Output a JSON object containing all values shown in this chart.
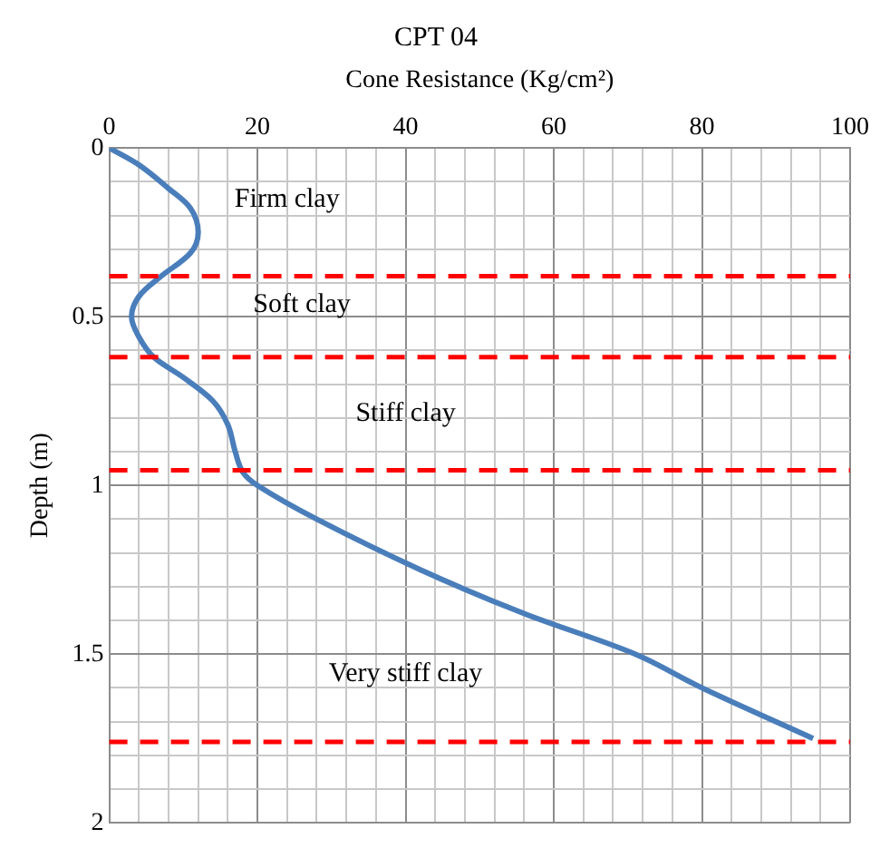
{
  "chart_data": {
    "type": "line",
    "title": "CPT 04",
    "xlabel": "Cone Resistance (Kg/cm²)",
    "ylabel": "Depth (m)",
    "xlim": [
      0,
      100
    ],
    "ylim": [
      2,
      0
    ],
    "xticks": [
      0,
      {
        "value": 4,
        "label": null
      },
      {
        "value": 8,
        "label": null
      },
      {
        "value": 12,
        "label": null
      },
      {
        "value": 16,
        "label": null
      },
      20,
      {
        "value": 24,
        "label": null
      },
      {
        "value": 28,
        "label": null
      },
      {
        "value": 32,
        "label": null
      },
      {
        "value": 36,
        "label": null
      },
      40,
      {
        "value": 44,
        "label": null
      },
      {
        "value": 48,
        "label": null
      },
      {
        "value": 52,
        "label": null
      },
      {
        "value": 56,
        "label": null
      },
      60,
      {
        "value": 64,
        "label": null
      },
      {
        "value": 68,
        "label": null
      },
      {
        "value": 72,
        "label": null
      },
      {
        "value": 76,
        "label": null
      },
      80,
      {
        "value": 84,
        "label": null
      },
      {
        "value": 88,
        "label": null
      },
      {
        "value": 92,
        "label": null
      },
      {
        "value": 96,
        "label": null
      },
      100
    ],
    "yticks": [
      0,
      {
        "value": 0.1,
        "label": null
      },
      {
        "value": 0.2,
        "label": null
      },
      {
        "value": 0.3,
        "label": null
      },
      {
        "value": 0.4,
        "label": null
      },
      0.5,
      {
        "value": 0.6,
        "label": null
      },
      {
        "value": 0.7,
        "label": null
      },
      {
        "value": 0.8,
        "label": null
      },
      {
        "value": 0.9,
        "label": null
      },
      1,
      {
        "value": 1.1,
        "label": null
      },
      {
        "value": 1.2,
        "label": null
      },
      {
        "value": 1.3,
        "label": null
      },
      {
        "value": 1.4,
        "label": null
      },
      1.5,
      {
        "value": 1.6,
        "label": null
      },
      {
        "value": 1.7,
        "label": null
      },
      {
        "value": 1.8,
        "label": null
      },
      {
        "value": 1.9,
        "label": null
      },
      2
    ],
    "grid": true,
    "legend": false,
    "marker": "none",
    "line_style": "solid",
    "series": [
      {
        "color": "#4a7ebb",
        "x": [
          0,
          4,
          8,
          11,
          12,
          11,
          7,
          4,
          3,
          4,
          6,
          10,
          14,
          16,
          17,
          18,
          20,
          28,
          42,
          56,
          71,
          80,
          95
        ],
        "values": [
          0,
          0.05,
          0.12,
          0.18,
          0.25,
          0.31,
          0.38,
          0.44,
          0.5,
          0.56,
          0.62,
          0.68,
          0.75,
          0.82,
          0.9,
          0.96,
          1.0,
          1.1,
          1.25,
          1.38,
          1.5,
          1.6,
          1.75
        ]
      }
    ],
    "ref_lines": [
      {
        "axis": "y",
        "value": 0.38,
        "color": "#ff0000",
        "line_style": "dashed"
      },
      {
        "axis": "y",
        "value": 0.62,
        "color": "#ff0000",
        "line_style": "dashed"
      },
      {
        "axis": "y",
        "value": 0.955,
        "color": "#ff0000",
        "line_style": "dashed"
      },
      {
        "axis": "y",
        "value": 1.76,
        "color": "#ff0000",
        "line_style": "dashed"
      }
    ],
    "annotations": [
      "Firm clay",
      "Soft clay",
      "Stiff clay",
      "Very stiff clay"
    ]
  }
}
